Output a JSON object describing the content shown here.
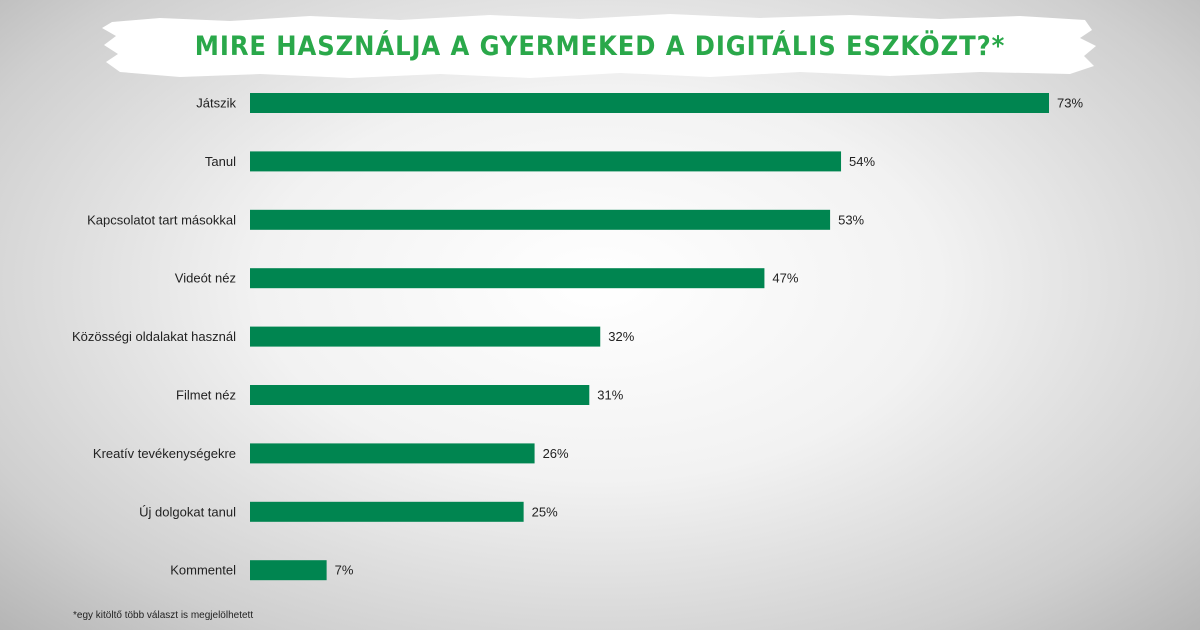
{
  "chart_data": {
    "type": "bar",
    "orientation": "horizontal",
    "title": "MIRE HASZNÁLJA A GYERMEKED A DIGITÁLIS ESZKÖZT?*",
    "categories": [
      "Játszik",
      "Tanul",
      "Kapcsolatot tart másokkal",
      "Videót néz",
      "Közösségi oldalakat használ",
      "Filmet néz",
      "Kreatív tevékenységekre",
      "Új dolgokat tanul",
      "Kommentel"
    ],
    "values": [
      73,
      54,
      53,
      47,
      32,
      31,
      26,
      25,
      7
    ],
    "value_labels": [
      "73%",
      "54%",
      "53%",
      "47%",
      "32%",
      "31%",
      "26%",
      "25%",
      "7%"
    ],
    "unit": "%",
    "xlim": [
      0,
      73
    ],
    "grid": false,
    "bar_color": "#008550"
  },
  "footnote": "*egy kitöltő több választ is megjelölhetett",
  "colors": {
    "title": "#2aa84a",
    "bar": "#008550",
    "banner": "#ffffff"
  }
}
